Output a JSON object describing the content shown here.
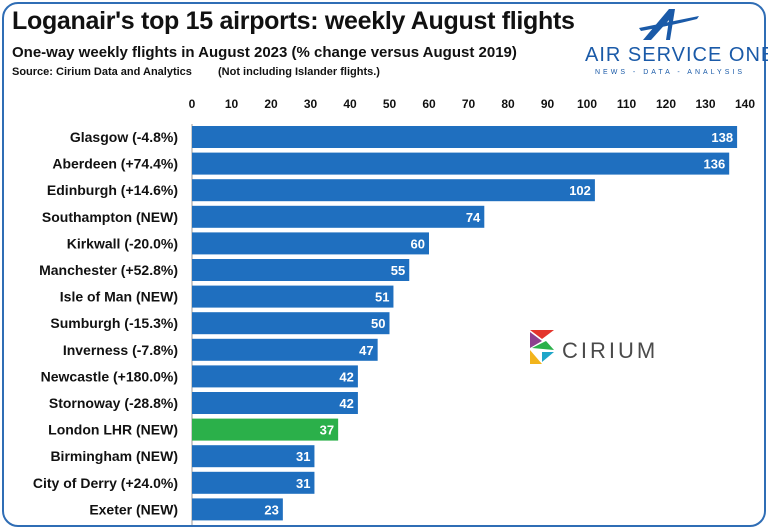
{
  "header": {
    "title": "Loganair's top 15 airports: weekly August flights",
    "subtitle": "One-way weekly flights in August 2023 (% change versus August 2019)",
    "source": "Source: Cirium Data and Analytics",
    "note": "(Not including Islander flights.)"
  },
  "logos": {
    "air_service_one": {
      "name": "AIR SERVICE ONE",
      "tagline": "NEWS - DATA - ANALYSIS",
      "icon": "stylized-a-plane-icon"
    },
    "cirium": {
      "name": "CIRIUM",
      "icon": "cirium-triangles-icon"
    }
  },
  "colors": {
    "bar": "#1f6fbf",
    "highlight": "#2bb04a",
    "frame": "#2f6db5",
    "brand": "#1a5aa8"
  },
  "chart_data": {
    "type": "bar",
    "orientation": "horizontal",
    "title": "Loganair's top 15 airports: weekly August flights",
    "xlabel": "",
    "ylabel": "",
    "xlim": [
      0,
      140
    ],
    "ticks": [
      0,
      10,
      20,
      30,
      40,
      50,
      60,
      70,
      80,
      90,
      100,
      110,
      120,
      130,
      140
    ],
    "axis_position": "top",
    "grid": false,
    "categories": [
      "Glasgow (-4.8%)",
      "Aberdeen (+74.4%)",
      "Edinburgh (+14.6%)",
      "Southampton (NEW)",
      "Kirkwall (-20.0%)",
      "Manchester (+52.8%)",
      "Isle of Man (NEW)",
      "Sumburgh (-15.3%)",
      "Inverness (-7.8%)",
      "Newcastle (+180.0%)",
      "Stornoway (-28.8%)",
      "London LHR (NEW)",
      "Birmingham (NEW)",
      "City of Derry (+24.0%)",
      "Exeter (NEW)"
    ],
    "values": [
      138,
      136,
      102,
      74,
      60,
      55,
      51,
      50,
      47,
      42,
      42,
      37,
      31,
      31,
      23
    ],
    "highlight_index": 11
  }
}
